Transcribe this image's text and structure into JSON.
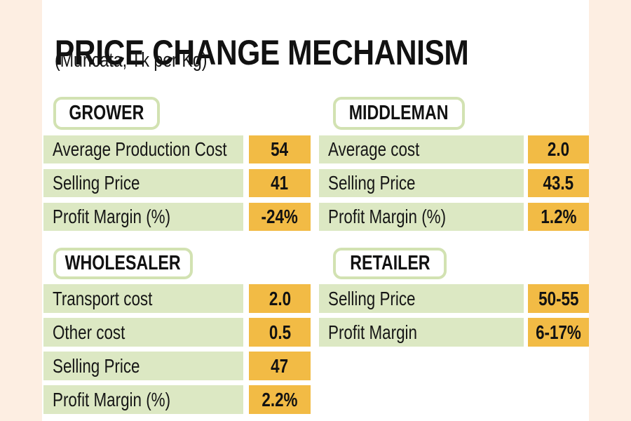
{
  "title": "PRICE CHANGE MECHANISM",
  "subtitle": "(Muricata, Tk per Kg)",
  "colors": {
    "background": "#ffffff",
    "margin_strip": "#fdeee2",
    "row_green": "#dce8c3",
    "tab_border_green": "#d2e2b2",
    "value_orange": "#f2bb45",
    "text": "#131313"
  },
  "tables": [
    {
      "header": "GROWER",
      "rows": [
        {
          "label": "Average Production Cost",
          "value": "54"
        },
        {
          "label": "Selling Price",
          "value": "41"
        },
        {
          "label": "Profit Margin (%)",
          "value": "-24%"
        }
      ]
    },
    {
      "header": "MIDDLEMAN",
      "rows": [
        {
          "label": "Average cost",
          "value": "2.0"
        },
        {
          "label": "Selling Price",
          "value": "43.5"
        },
        {
          "label": "Profit Margin (%)",
          "value": "1.2%"
        }
      ]
    },
    {
      "header": "WHOLESALER",
      "rows": [
        {
          "label": "Transport cost",
          "value": "2.0"
        },
        {
          "label": "Other cost",
          "value": "0.5"
        },
        {
          "label": "Selling Price",
          "value": "47"
        },
        {
          "label": "Profit Margin (%)",
          "value": "2.2%"
        }
      ]
    },
    {
      "header": "RETAILER",
      "rows": [
        {
          "label": "Selling Price",
          "value": "50-55"
        },
        {
          "label": "Profit Margin",
          "value": "6-17%"
        }
      ]
    }
  ],
  "chart_data": {
    "type": "table",
    "title": "PRICE CHANGE MECHANISM",
    "subtitle": "(Muricata, Tk per Kg)",
    "unit": "Tk per Kg",
    "tables": [
      {
        "name": "GROWER",
        "rows": [
          [
            "Average Production Cost",
            "54"
          ],
          [
            "Selling Price",
            "41"
          ],
          [
            "Profit Margin (%)",
            "-24%"
          ]
        ]
      },
      {
        "name": "MIDDLEMAN",
        "rows": [
          [
            "Average cost",
            "2.0"
          ],
          [
            "Selling Price",
            "43.5"
          ],
          [
            "Profit Margin (%)",
            "1.2%"
          ]
        ]
      },
      {
        "name": "WHOLESALER",
        "rows": [
          [
            "Transport cost",
            "2.0"
          ],
          [
            "Other cost",
            "0.5"
          ],
          [
            "Selling Price",
            "47"
          ],
          [
            "Profit Margin (%)",
            "2.2%"
          ]
        ]
      },
      {
        "name": "RETAILER",
        "rows": [
          [
            "Selling Price",
            "50-55"
          ],
          [
            "Profit Margin",
            "6-17%"
          ]
        ]
      }
    ]
  }
}
